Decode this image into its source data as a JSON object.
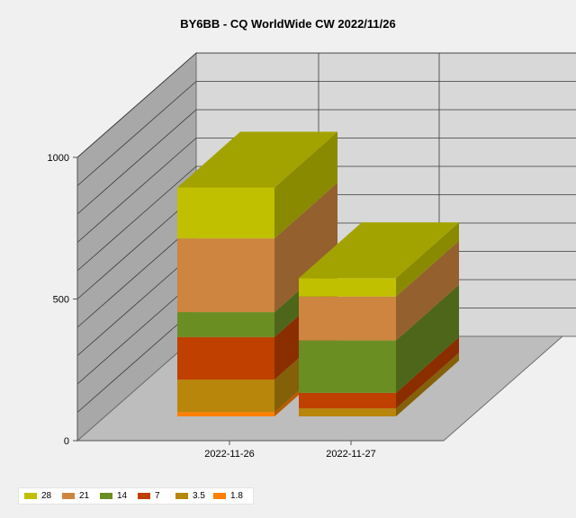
{
  "chart_data": {
    "type": "bar",
    "stacked": true,
    "three_d": true,
    "title": "BY6BB - CQ WorldWide CW 2022/11/26",
    "categories": [
      "2022-11-26",
      "2022-11-27"
    ],
    "series": [
      {
        "name": "1.8",
        "color": "#ff8000",
        "values": [
          15,
          0
        ]
      },
      {
        "name": "3.5",
        "color": "#b8860b",
        "values": [
          115,
          28
        ]
      },
      {
        "name": "7",
        "color": "#c04000",
        "values": [
          150,
          55
        ]
      },
      {
        "name": "14",
        "color": "#6b8e23",
        "values": [
          88,
          185
        ]
      },
      {
        "name": "21",
        "color": "#cd853f",
        "values": [
          260,
          155
        ]
      },
      {
        "name": "28",
        "color": "#c0c000",
        "values": [
          180,
          65
        ]
      }
    ],
    "yticks": [
      0,
      500,
      1000
    ],
    "ylim": [
      0,
      1000
    ],
    "grid": true,
    "legend_position": "bottom-left"
  }
}
